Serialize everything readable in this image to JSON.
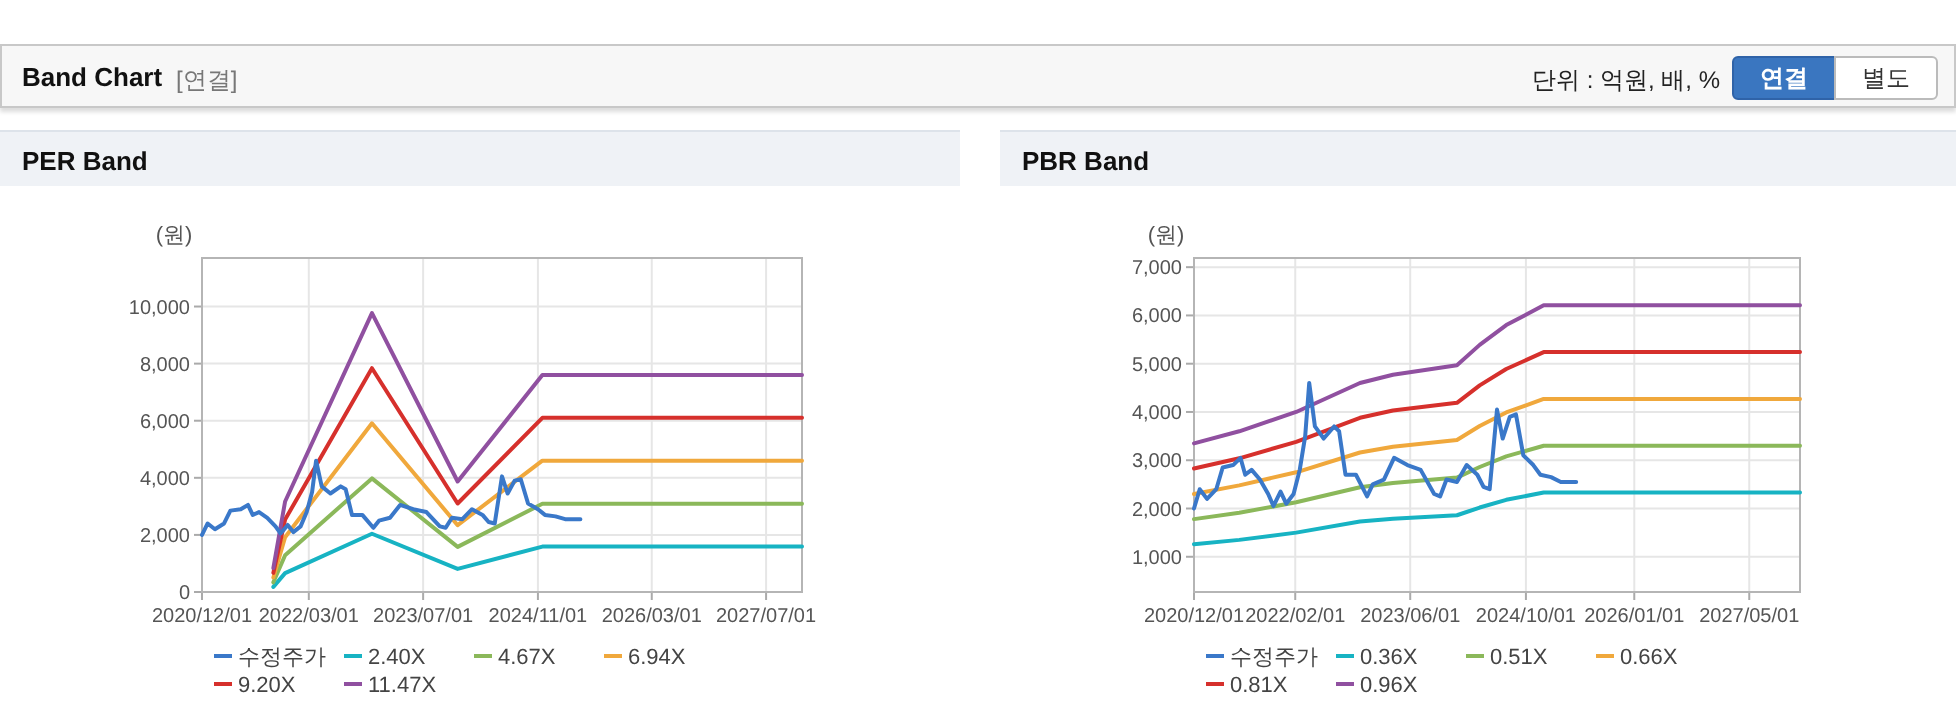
{
  "chart_data": [
    {
      "type": "line",
      "title": "PER Band",
      "ylabel": "(원)",
      "annotations": [
        "Band Chart",
        "[연결]",
        "단위 : 억원, 배, %",
        "연결",
        "별도"
      ],
      "legend": "bottom",
      "grid": true,
      "xlim": [
        "2020-12-01",
        "2027-12-01"
      ],
      "ylim": [
        0,
        11700
      ],
      "xticks": [
        {
          "value": "2020-12-01",
          "label": "2020/12/01"
        },
        {
          "value": "2022-03-01",
          "label": "2022/03/01"
        },
        {
          "value": "2023-07-01",
          "label": "2023/07/01"
        },
        {
          "value": "2024-11-01",
          "label": "2024/11/01"
        },
        {
          "value": "2026-03-01",
          "label": "2026/03/01"
        },
        {
          "value": "2027-07-01",
          "label": "2027/07/01"
        }
      ],
      "yticks": [
        0,
        {
          "value": 2000,
          "label": "2,000"
        },
        {
          "value": 4000,
          "label": "4,000"
        },
        {
          "value": 6000,
          "label": "6,000"
        },
        {
          "value": 8000,
          "label": "8,000"
        },
        {
          "value": 10000,
          "label": "10,000"
        }
      ],
      "series": [
        {
          "name": "수정주가",
          "color": "#3a78c9",
          "x": [
            "2020-12-01",
            "2020-12-25",
            "2021-01-25",
            "2021-03-05",
            "2021-04-01",
            "2021-05-15",
            "2021-06-15",
            "2021-07-05",
            "2021-08-01",
            "2021-09-05",
            "2021-10-10",
            "2021-11-01",
            "2021-12-01",
            "2021-12-25",
            "2022-01-25",
            "2022-02-20",
            "2022-03-15",
            "2022-04-01",
            "2022-04-25",
            "2022-06-01",
            "2022-07-15",
            "2022-08-05",
            "2022-09-01",
            "2022-10-15",
            "2022-12-01",
            "2022-12-25",
            "2023-02-10",
            "2023-03-25",
            "2023-05-20",
            "2023-07-15",
            "2023-09-10",
            "2023-10-05",
            "2023-11-01",
            "2023-12-15",
            "2024-01-25",
            "2024-03-10",
            "2024-04-05",
            "2024-05-01",
            "2024-06-01",
            "2024-06-25",
            "2024-07-25",
            "2024-08-20",
            "2024-09-20",
            "2024-11-01",
            "2024-12-01",
            "2025-01-15",
            "2025-02-25",
            "2025-05-01"
          ],
          "values": [
            2000,
            2400,
            2200,
            2400,
            2850,
            2900,
            3050,
            2700,
            2800,
            2600,
            2300,
            2050,
            2350,
            2100,
            2300,
            2800,
            3500,
            4600,
            3700,
            3450,
            3700,
            3600,
            2700,
            2700,
            2250,
            2500,
            2600,
            3050,
            2900,
            2800,
            2300,
            2250,
            2600,
            2550,
            2900,
            2700,
            2450,
            2400,
            4050,
            3450,
            3900,
            3950,
            3100,
            2900,
            2700,
            2650,
            2550,
            2550
          ]
        },
        {
          "name": "2.40X",
          "color": "#17b3c3",
          "x": [
            "2021-10-01",
            "2021-11-20",
            "2022-11-25",
            "2023-11-25",
            "2024-11-20",
            "2027-12-01"
          ],
          "values": [
            180,
            660,
            2040,
            810,
            1590,
            1590
          ]
        },
        {
          "name": "4.67X",
          "color": "#8bb85a",
          "x": [
            "2021-10-01",
            "2021-11-20",
            "2022-11-25",
            "2023-11-25",
            "2024-11-20",
            "2027-12-01"
          ],
          "values": [
            340,
            1290,
            3980,
            1580,
            3090,
            3090
          ]
        },
        {
          "name": "6.94X",
          "color": "#f0a83c",
          "x": [
            "2021-10-01",
            "2021-11-20",
            "2022-11-25",
            "2023-11-25",
            "2024-11-20",
            "2027-12-01"
          ],
          "values": [
            510,
            1920,
            5910,
            2340,
            4600,
            4600
          ]
        },
        {
          "name": "9.20X",
          "color": "#d6302c",
          "x": [
            "2021-10-01",
            "2021-11-20",
            "2022-11-25",
            "2023-11-25",
            "2024-11-20",
            "2027-12-01"
          ],
          "values": [
            670,
            2540,
            7840,
            3100,
            6100,
            6100
          ]
        },
        {
          "name": "11.47X",
          "color": "#9050a0",
          "x": [
            "2021-10-01",
            "2021-11-20",
            "2022-11-25",
            "2023-11-25",
            "2024-11-20",
            "2027-12-01"
          ],
          "values": [
            840,
            3170,
            9770,
            3870,
            7600,
            7600
          ]
        }
      ]
    },
    {
      "type": "line",
      "title": "PBR Band",
      "ylabel": "(원)",
      "legend": "bottom",
      "grid": true,
      "xlim": [
        "2020-12-01",
        "2027-12-01"
      ],
      "ylim": [
        270,
        7190
      ],
      "xticks": [
        {
          "value": "2020-12-01",
          "label": "2020/12/01"
        },
        {
          "value": "2022-02-01",
          "label": "2022/02/01"
        },
        {
          "value": "2023-06-01",
          "label": "2023/06/01"
        },
        {
          "value": "2024-10-01",
          "label": "2024/10/01"
        },
        {
          "value": "2026-01-01",
          "label": "2026/01/01"
        },
        {
          "value": "2027-05-01",
          "label": "2027/05/01"
        }
      ],
      "yticks": [
        {
          "value": 1000,
          "label": "1,000"
        },
        {
          "value": 2000,
          "label": "2,000"
        },
        {
          "value": 3000,
          "label": "3,000"
        },
        {
          "value": 4000,
          "label": "4,000"
        },
        {
          "value": 5000,
          "label": "5,000"
        },
        {
          "value": 6000,
          "label": "6,000"
        },
        {
          "value": 7000,
          "label": "7,000"
        }
      ],
      "series": [
        {
          "name": "수정주가",
          "color": "#3a78c9",
          "x": [
            "2020-12-01",
            "2020-12-25",
            "2021-01-25",
            "2021-03-05",
            "2021-04-01",
            "2021-05-15",
            "2021-06-15",
            "2021-07-05",
            "2021-08-01",
            "2021-09-05",
            "2021-10-10",
            "2021-11-01",
            "2021-12-01",
            "2021-12-25",
            "2022-01-25",
            "2022-02-20",
            "2022-03-15",
            "2022-04-01",
            "2022-04-25",
            "2022-06-01",
            "2022-07-15",
            "2022-08-05",
            "2022-09-01",
            "2022-10-15",
            "2022-12-01",
            "2022-12-25",
            "2023-02-10",
            "2023-03-25",
            "2023-05-20",
            "2023-07-15",
            "2023-09-10",
            "2023-10-05",
            "2023-11-01",
            "2023-12-15",
            "2024-01-25",
            "2024-03-10",
            "2024-04-05",
            "2024-05-01",
            "2024-06-01",
            "2024-06-25",
            "2024-07-25",
            "2024-08-20",
            "2024-09-20",
            "2024-11-01",
            "2024-12-01",
            "2025-01-15",
            "2025-02-25",
            "2025-05-01"
          ],
          "values": [
            2000,
            2400,
            2200,
            2400,
            2850,
            2900,
            3050,
            2700,
            2800,
            2600,
            2300,
            2050,
            2350,
            2100,
            2300,
            2800,
            3500,
            4600,
            3700,
            3450,
            3700,
            3600,
            2700,
            2700,
            2250,
            2500,
            2600,
            3050,
            2900,
            2800,
            2300,
            2250,
            2600,
            2550,
            2900,
            2700,
            2450,
            2400,
            4050,
            3450,
            3900,
            3950,
            3100,
            2900,
            2700,
            2650,
            2550,
            2550
          ]
        },
        {
          "name": "0.36X",
          "color": "#17b3c3",
          "x": [
            "2020-12-01",
            "2021-06-10",
            "2022-02-05",
            "2022-11-01",
            "2023-03-20",
            "2023-12-15",
            "2024-03-20",
            "2024-07-10",
            "2024-12-15",
            "2027-12-01"
          ],
          "values": [
            1260,
            1350,
            1500,
            1730,
            1790,
            1860,
            2020,
            2180,
            2330,
            2330
          ]
        },
        {
          "name": "0.51X",
          "color": "#8bb85a",
          "x": [
            "2020-12-01",
            "2021-06-10",
            "2022-02-05",
            "2022-11-01",
            "2023-03-20",
            "2023-12-15",
            "2024-03-20",
            "2024-07-10",
            "2024-12-15",
            "2027-12-01"
          ],
          "values": [
            1780,
            1910,
            2130,
            2440,
            2530,
            2640,
            2860,
            3080,
            3300,
            3300
          ]
        },
        {
          "name": "0.66X",
          "color": "#f0a83c",
          "x": [
            "2020-12-01",
            "2021-06-10",
            "2022-02-05",
            "2022-11-01",
            "2023-03-20",
            "2023-12-15",
            "2024-03-20",
            "2024-07-10",
            "2024-12-15",
            "2027-12-01"
          ],
          "values": [
            2300,
            2480,
            2750,
            3160,
            3280,
            3420,
            3710,
            3990,
            4270,
            4270
          ]
        },
        {
          "name": "0.81X",
          "color": "#d6302c",
          "x": [
            "2020-12-01",
            "2021-06-10",
            "2022-02-05",
            "2022-11-01",
            "2023-03-20",
            "2023-12-15",
            "2024-03-20",
            "2024-07-10",
            "2024-12-15",
            "2027-12-01"
          ],
          "values": [
            2830,
            3040,
            3380,
            3880,
            4030,
            4190,
            4550,
            4890,
            5240,
            5240
          ]
        },
        {
          "name": "0.96X",
          "color": "#9050a0",
          "x": [
            "2020-12-01",
            "2021-06-10",
            "2022-02-05",
            "2022-11-01",
            "2023-03-20",
            "2023-12-15",
            "2024-03-20",
            "2024-07-10",
            "2024-12-15",
            "2027-12-01"
          ],
          "values": [
            3350,
            3600,
            4000,
            4600,
            4770,
            4970,
            5390,
            5800,
            6210,
            6210
          ]
        }
      ]
    }
  ]
}
